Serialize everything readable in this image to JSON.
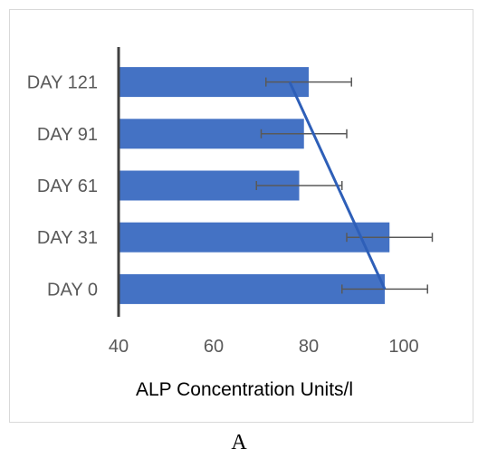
{
  "panel_label": "A",
  "chart_data": {
    "type": "bar",
    "orientation": "horizontal",
    "categories": [
      "DAY 0",
      "DAY 31",
      "DAY 61",
      "DAY 91",
      "DAY 121"
    ],
    "series": [
      {
        "values": [
          96,
          97,
          78,
          79,
          80
        ],
        "errors": [
          9,
          9,
          9,
          9,
          9
        ]
      }
    ],
    "trendline": {
      "from": [
        96,
        "DAY 0"
      ],
      "to": [
        76,
        "DAY 121"
      ]
    },
    "xlabel": "ALP Concentration Units/l",
    "ylabel": "",
    "xlim": [
      40,
      100
    ],
    "xticks": [
      40,
      60,
      80,
      100
    ],
    "grid": false,
    "legend": "none",
    "colors": {
      "bar": "#4472c4",
      "error_bar": "#595959",
      "trendline": "#2e5fb8",
      "axis": "#404040"
    }
  }
}
